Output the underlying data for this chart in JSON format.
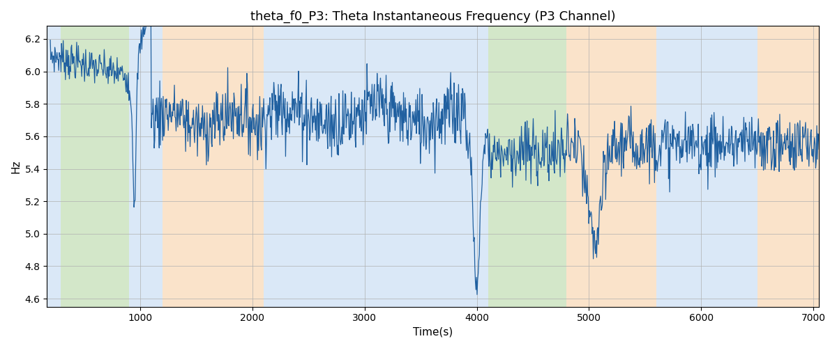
{
  "title": "theta_f0_P3: Theta Instantaneous Frequency (P3 Channel)",
  "xlabel": "Time(s)",
  "ylabel": "Hz",
  "xlim": [
    170,
    7050
  ],
  "ylim": [
    4.55,
    6.28
  ],
  "line_color": "#2060a0",
  "line_width": 0.9,
  "background_color": "#ffffff",
  "grid_color": "#b0b0b0",
  "bands": [
    {
      "xmin": 170,
      "xmax": 290,
      "color": "#aeccee",
      "alpha": 0.45
    },
    {
      "xmin": 290,
      "xmax": 900,
      "color": "#9ecb88",
      "alpha": 0.45
    },
    {
      "xmin": 900,
      "xmax": 1200,
      "color": "#aeccee",
      "alpha": 0.45
    },
    {
      "xmin": 1200,
      "xmax": 2100,
      "color": "#f7c896",
      "alpha": 0.5
    },
    {
      "xmin": 2100,
      "xmax": 3900,
      "color": "#aeccee",
      "alpha": 0.45
    },
    {
      "xmin": 3900,
      "xmax": 4100,
      "color": "#aeccee",
      "alpha": 0.45
    },
    {
      "xmin": 4100,
      "xmax": 4800,
      "color": "#9ecb88",
      "alpha": 0.45
    },
    {
      "xmin": 4800,
      "xmax": 5600,
      "color": "#f7c896",
      "alpha": 0.5
    },
    {
      "xmin": 5600,
      "xmax": 6500,
      "color": "#aeccee",
      "alpha": 0.45
    },
    {
      "xmin": 6500,
      "xmax": 7100,
      "color": "#f7c896",
      "alpha": 0.5
    }
  ],
  "xticks": [
    1000,
    2000,
    3000,
    4000,
    5000,
    6000,
    7000
  ],
  "yticks": [
    4.6,
    4.8,
    5.0,
    5.2,
    5.4,
    5.6,
    5.8,
    6.0,
    6.2
  ],
  "seed": 7,
  "t_start": 200,
  "t_end": 7050,
  "n_points": 1370
}
